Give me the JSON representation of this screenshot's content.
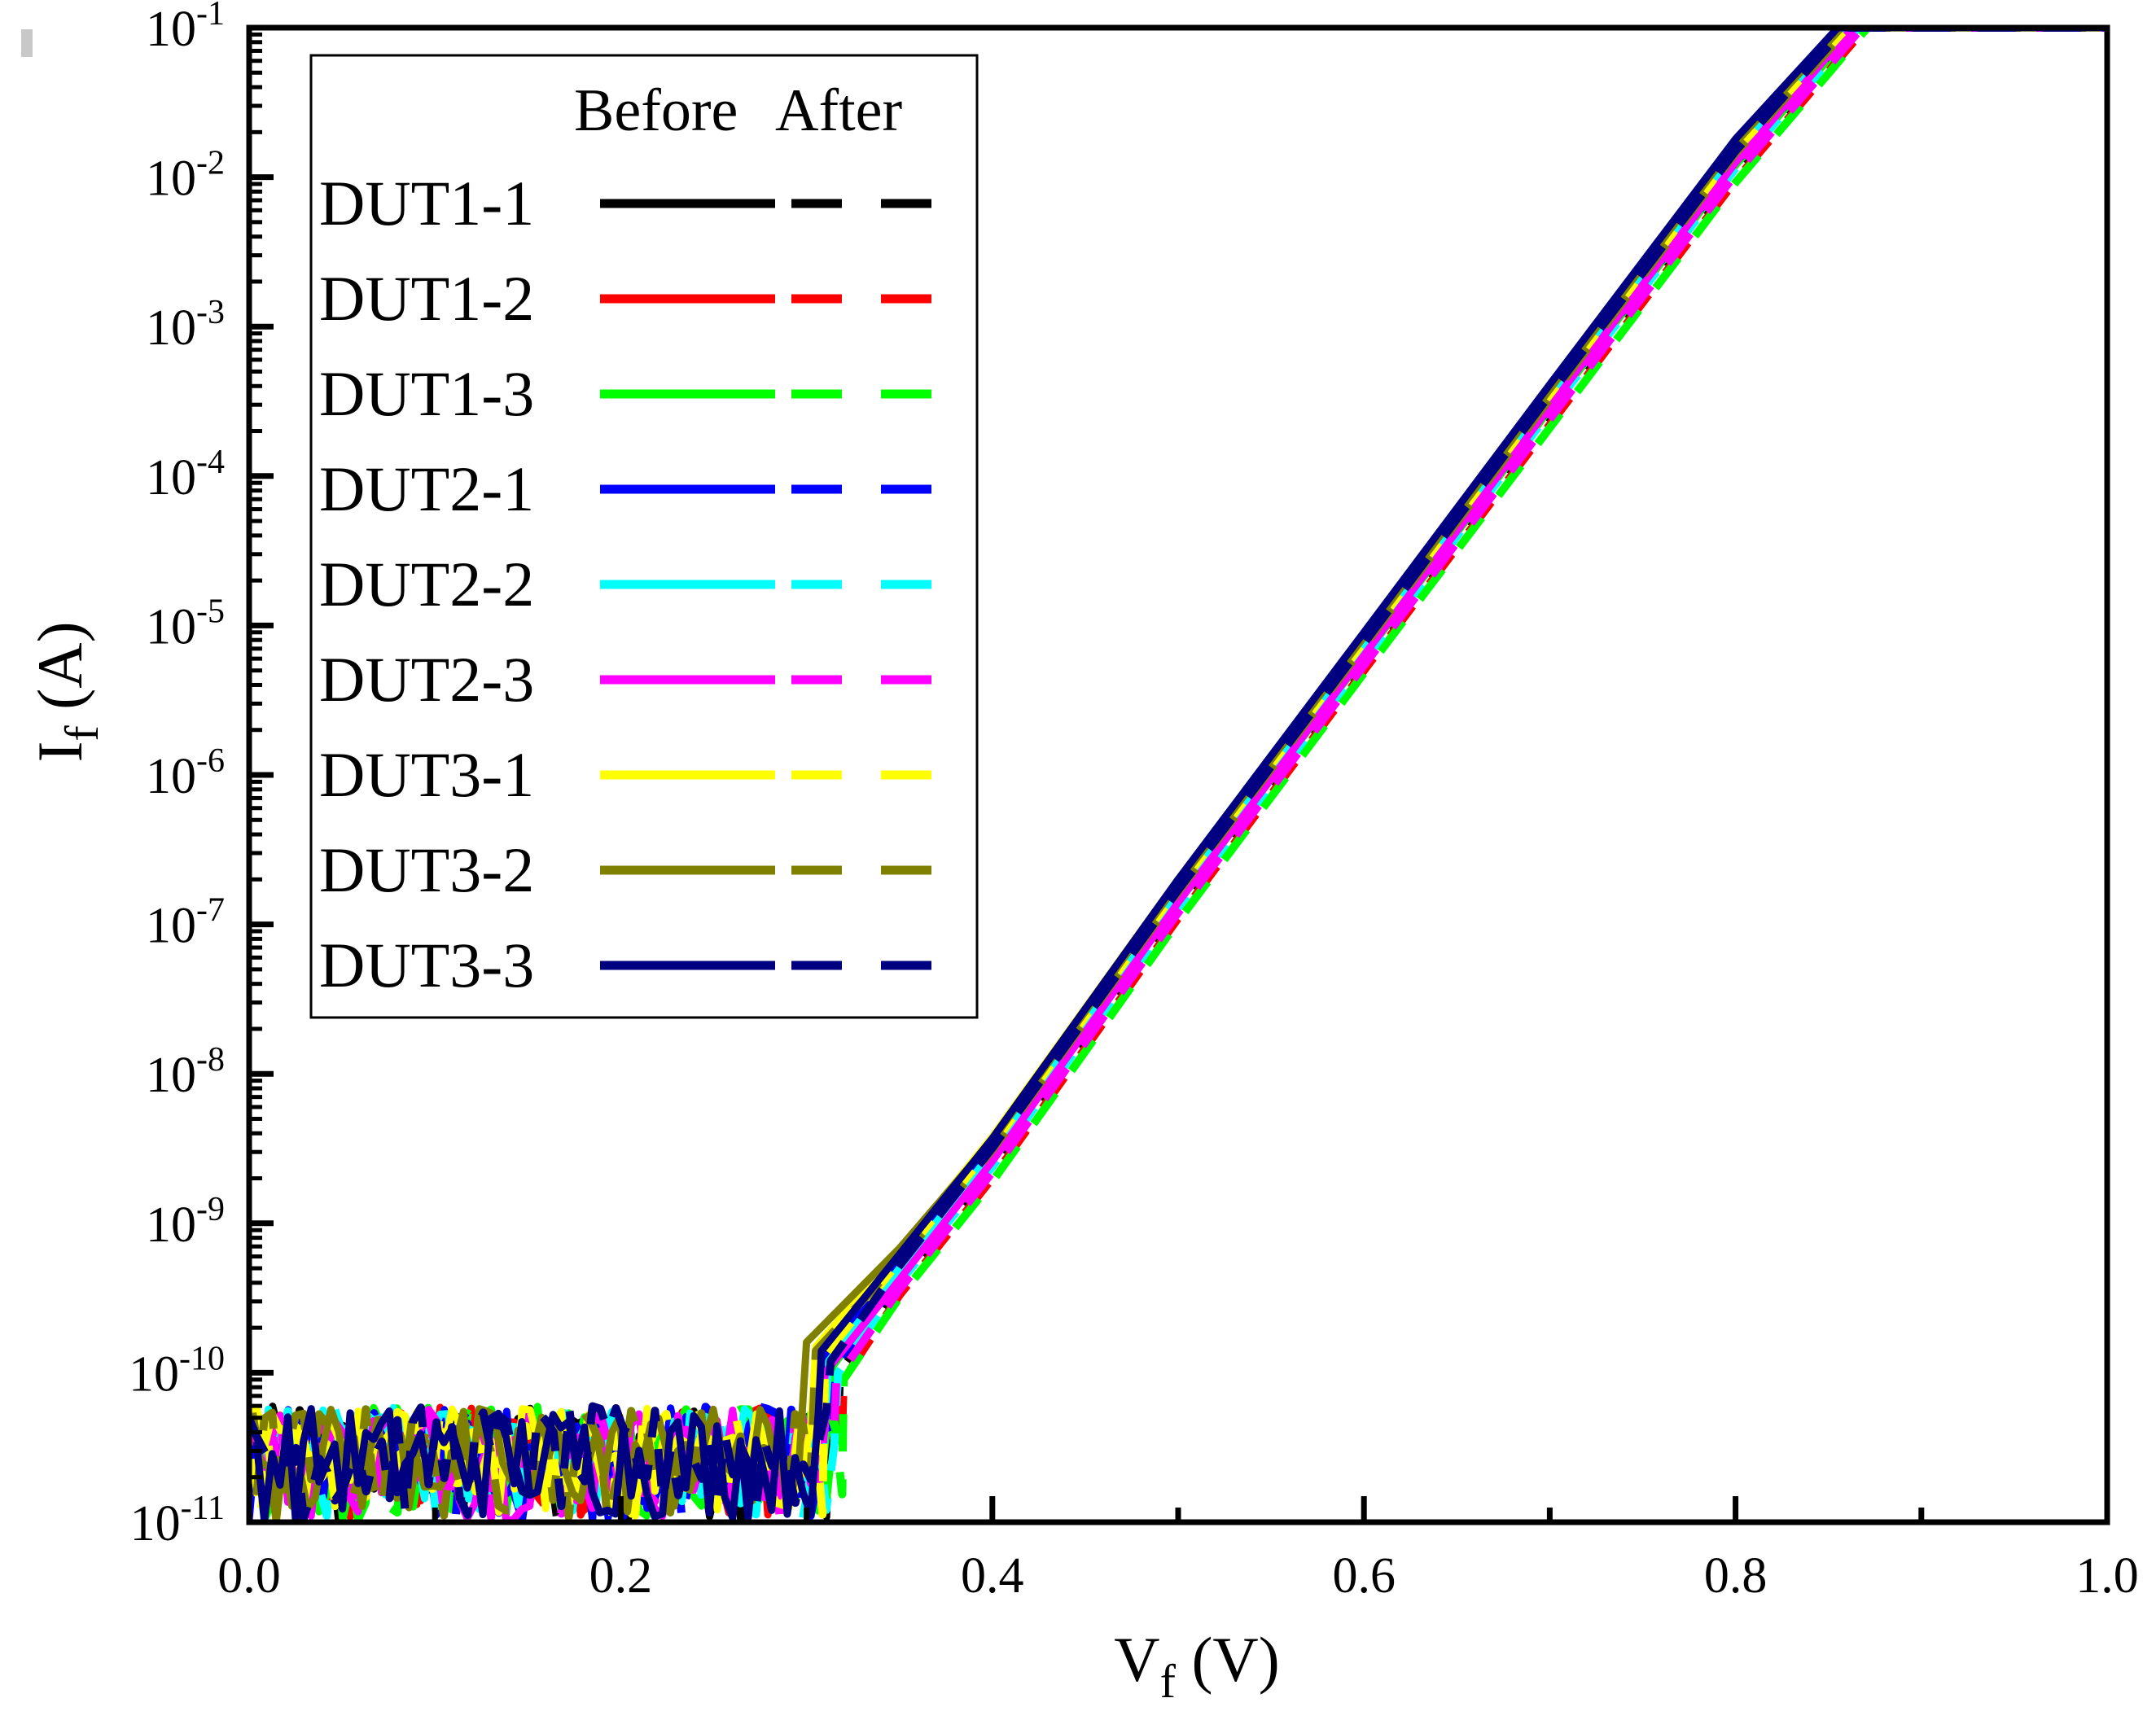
{
  "chart_data": {
    "type": "line",
    "title": "",
    "xlabel": {
      "main": "V",
      "sub": "f",
      "unit": " (V)"
    },
    "ylabel": {
      "main": "I",
      "sub": "f",
      "unit": " (A)"
    },
    "xscale": "linear",
    "yscale": "log",
    "xlim": [
      0.0,
      1.0
    ],
    "ylim": [
      1e-11,
      0.1
    ],
    "x_ticks": [
      {
        "value": 0.0,
        "label": "0.0"
      },
      {
        "value": 0.2,
        "label": "0.2"
      },
      {
        "value": 0.4,
        "label": "0.4"
      },
      {
        "value": 0.6,
        "label": "0.6"
      },
      {
        "value": 0.8,
        "label": "0.8"
      },
      {
        "value": 1.0,
        "label": "1.0"
      }
    ],
    "y_ticks": [
      {
        "value": 1e-11,
        "base": "10",
        "exp": "-11"
      },
      {
        "value": 1e-10,
        "base": "10",
        "exp": "-10"
      },
      {
        "value": 1e-09,
        "base": "10",
        "exp": "-9"
      },
      {
        "value": 1e-08,
        "base": "10",
        "exp": "-8"
      },
      {
        "value": 1e-07,
        "base": "10",
        "exp": "-7"
      },
      {
        "value": 1e-06,
        "base": "10",
        "exp": "-6"
      },
      {
        "value": 1e-05,
        "base": "10",
        "exp": "-5"
      },
      {
        "value": 0.0001,
        "base": "10",
        "exp": "-4"
      },
      {
        "value": 0.001,
        "base": "10",
        "exp": "-3"
      },
      {
        "value": 0.01,
        "base": "10",
        "exp": "-2"
      },
      {
        "value": 0.1,
        "base": "10",
        "exp": "-1"
      }
    ],
    "legend": {
      "position": "top-left",
      "header_before": "Before",
      "header_after": "After"
    },
    "noise_floor": {
      "x_range": [
        0.0,
        0.3
      ],
      "y_range": [
        1e-11,
        6e-11
      ]
    },
    "series": [
      {
        "name": "DUT1-1",
        "color": "#000000",
        "before": {
          "onset_x": 0.313,
          "x": [
            0.313,
            0.35,
            0.4,
            0.5,
            0.6,
            0.7,
            0.8,
            0.862,
            1.0
          ],
          "y": [
            1.2e-10,
            5e-10,
            3e-09,
            1.6e-07,
            7e-06,
            0.00032,
            0.014,
            0.1,
            0.1
          ]
        },
        "after": {
          "onset_x": 0.318,
          "x": [
            0.318,
            0.35,
            0.4,
            0.5,
            0.6,
            0.7,
            0.8,
            0.868,
            1.0
          ],
          "y": [
            1e-10,
            3.8e-10,
            2.4e-09,
            1.3e-07,
            5.8e-06,
            0.00026,
            0.011,
            0.1,
            0.1
          ]
        }
      },
      {
        "name": "DUT1-2",
        "color": "#ff0000",
        "before": {
          "onset_x": 0.313,
          "x": [
            0.313,
            0.35,
            0.4,
            0.5,
            0.6,
            0.7,
            0.8,
            0.864,
            1.0
          ],
          "y": [
            1.1e-10,
            4.6e-10,
            2.8e-09,
            1.5e-07,
            6.5e-06,
            0.0003,
            0.013,
            0.1,
            0.1
          ]
        },
        "after": {
          "onset_x": 0.32,
          "x": [
            0.32,
            0.35,
            0.4,
            0.5,
            0.6,
            0.7,
            0.8,
            0.87,
            1.0
          ],
          "y": [
            9e-11,
            3.3e-10,
            2e-09,
            1.1e-07,
            5e-06,
            0.00022,
            0.0095,
            0.1,
            0.1
          ]
        }
      },
      {
        "name": "DUT1-3",
        "color": "#00ff00",
        "before": {
          "onset_x": 0.314,
          "x": [
            0.314,
            0.35,
            0.4,
            0.5,
            0.6,
            0.7,
            0.8,
            0.865,
            1.0
          ],
          "y": [
            1.1e-10,
            4.4e-10,
            2.7e-09,
            1.4e-07,
            6.2e-06,
            0.00028,
            0.012,
            0.1,
            0.1
          ]
        },
        "after": {
          "onset_x": 0.32,
          "x": [
            0.32,
            0.35,
            0.4,
            0.5,
            0.6,
            0.7,
            0.8,
            0.871,
            1.0
          ],
          "y": [
            9e-11,
            3.2e-10,
            1.9e-09,
            1.05e-07,
            4.8e-06,
            0.00021,
            0.0092,
            0.1,
            0.1
          ]
        }
      },
      {
        "name": "DUT2-1",
        "color": "#0000ff",
        "before": {
          "onset_x": 0.31,
          "x": [
            0.31,
            0.35,
            0.4,
            0.5,
            0.6,
            0.7,
            0.8,
            0.858,
            1.0
          ],
          "y": [
            1.3e-10,
            5.5e-10,
            3.3e-09,
            1.8e-07,
            8e-06,
            0.00036,
            0.016,
            0.1,
            0.1
          ]
        },
        "after": {
          "onset_x": 0.315,
          "x": [
            0.315,
            0.35,
            0.4,
            0.5,
            0.6,
            0.7,
            0.8,
            0.863,
            1.0
          ],
          "y": [
            1.1e-10,
            4.3e-10,
            2.7e-09,
            1.45e-07,
            6.4e-06,
            0.00029,
            0.0125,
            0.1,
            0.1
          ]
        }
      },
      {
        "name": "DUT2-2",
        "color": "#00ffff",
        "before": {
          "onset_x": 0.312,
          "x": [
            0.312,
            0.35,
            0.4,
            0.5,
            0.6,
            0.7,
            0.8,
            0.861,
            1.0
          ],
          "y": [
            1.2e-10,
            5e-10,
            3e-09,
            1.6e-07,
            7.2e-06,
            0.00033,
            0.0145,
            0.1,
            0.1
          ]
        },
        "after": {
          "onset_x": 0.317,
          "x": [
            0.317,
            0.35,
            0.4,
            0.5,
            0.6,
            0.7,
            0.8,
            0.866,
            1.0
          ],
          "y": [
            1e-10,
            4e-10,
            2.4e-09,
            1.3e-07,
            5.8e-06,
            0.00027,
            0.0115,
            0.1,
            0.1
          ]
        }
      },
      {
        "name": "DUT2-3",
        "color": "#ff00ff",
        "before": {
          "onset_x": 0.31,
          "x": [
            0.31,
            0.35,
            0.4,
            0.5,
            0.6,
            0.7,
            0.8,
            0.863,
            1.0
          ],
          "y": [
            1e-10,
            4.2e-10,
            2.6e-09,
            1.4e-07,
            6.3e-06,
            0.00029,
            0.0125,
            0.1,
            0.1
          ]
        },
        "after": {
          "onset_x": 0.316,
          "x": [
            0.316,
            0.35,
            0.4,
            0.5,
            0.6,
            0.7,
            0.8,
            0.868,
            1.0
          ],
          "y": [
            9e-11,
            3.6e-10,
            2.2e-09,
            1.2e-07,
            5.4e-06,
            0.00024,
            0.0105,
            0.1,
            0.1
          ]
        }
      },
      {
        "name": "DUT3-1",
        "color": "#ffff00",
        "before": {
          "onset_x": 0.305,
          "x": [
            0.305,
            0.35,
            0.4,
            0.5,
            0.6,
            0.7,
            0.8,
            0.856,
            1.0
          ],
          "y": [
            1.5e-10,
            6.5e-10,
            3.8e-09,
            2e-07,
            8.8e-06,
            0.0004,
            0.0175,
            0.1,
            0.1
          ]
        },
        "after": {
          "onset_x": 0.31,
          "x": [
            0.31,
            0.35,
            0.4,
            0.5,
            0.6,
            0.7,
            0.8,
            0.86,
            1.0
          ],
          "y": [
            1.3e-10,
            5.6e-10,
            3.3e-09,
            1.75e-07,
            7.8e-06,
            0.00035,
            0.015,
            0.1,
            0.1
          ]
        }
      },
      {
        "name": "DUT3-2",
        "color": "#808000",
        "before": {
          "onset_x": 0.3,
          "x": [
            0.3,
            0.35,
            0.4,
            0.5,
            0.6,
            0.7,
            0.8,
            0.857,
            1.0
          ],
          "y": [
            1.6e-10,
            6.8e-10,
            3.6e-09,
            1.9e-07,
            8.4e-06,
            0.00038,
            0.017,
            0.1,
            0.1
          ]
        },
        "after": {
          "onset_x": 0.305,
          "x": [
            0.305,
            0.35,
            0.4,
            0.5,
            0.6,
            0.7,
            0.8,
            0.861,
            1.0
          ],
          "y": [
            1.4e-10,
            5.6e-10,
            3.1e-09,
            1.65e-07,
            7.3e-06,
            0.00033,
            0.0145,
            0.1,
            0.1
          ]
        }
      },
      {
        "name": "DUT3-3",
        "color": "#000080",
        "before": {
          "onset_x": 0.308,
          "x": [
            0.308,
            0.35,
            0.4,
            0.5,
            0.6,
            0.7,
            0.8,
            0.855,
            1.0
          ],
          "y": [
            1.4e-10,
            6.2e-10,
            3.7e-09,
            2e-07,
            9e-06,
            0.00041,
            0.018,
            0.1,
            0.1
          ]
        },
        "after": {
          "onset_x": 0.313,
          "x": [
            0.313,
            0.35,
            0.4,
            0.5,
            0.6,
            0.7,
            0.8,
            0.859,
            1.0
          ],
          "y": [
            1.2e-10,
            5.2e-10,
            3.2e-09,
            1.7e-07,
            7.6e-06,
            0.00035,
            0.015,
            0.1,
            0.1
          ]
        }
      }
    ]
  }
}
